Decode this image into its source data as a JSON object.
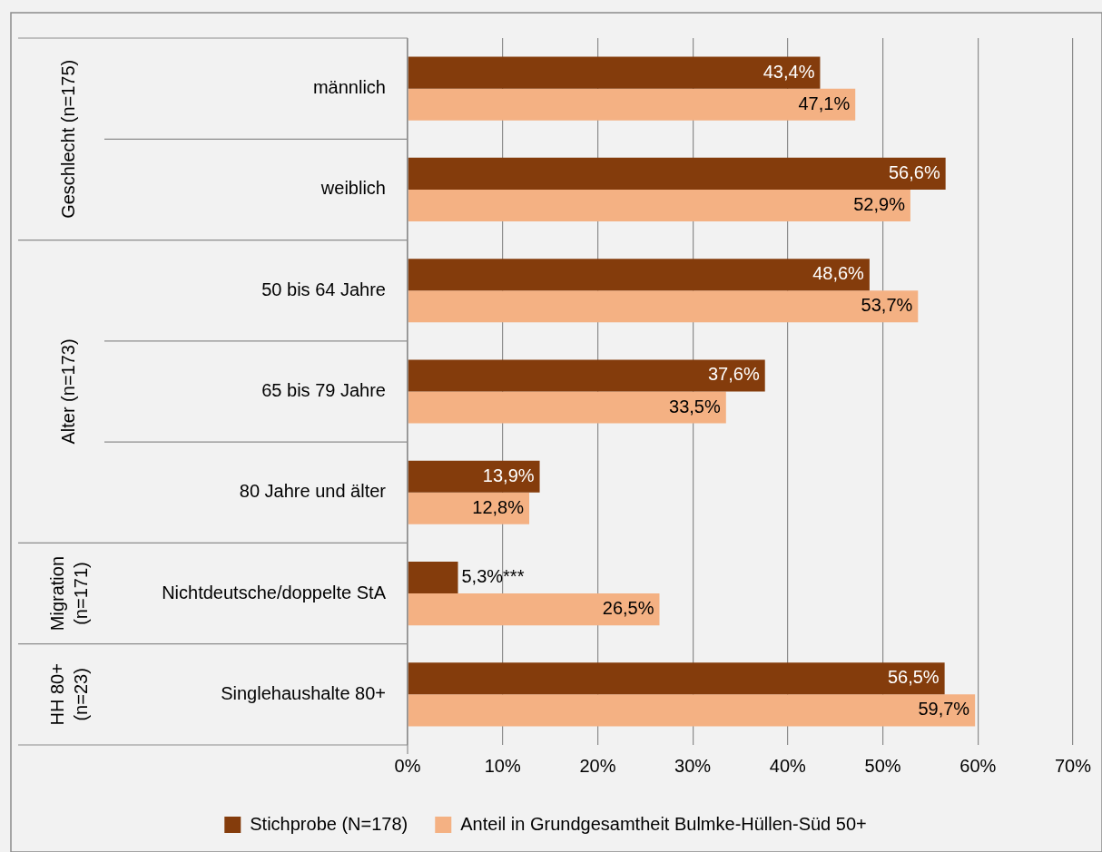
{
  "chart_data": {
    "type": "bar",
    "orientation": "horizontal",
    "categories": [
      "männlich",
      "weiblich",
      "50 bis 64 Jahre",
      "65 bis 79 Jahre",
      "80 Jahre und älter",
      "Nichtdeutsche/doppelte StA",
      "Singlehaushalte 80+"
    ],
    "series": [
      {
        "name": "Stichprobe (N=178)",
        "color": "#843c0c",
        "values": [
          43.4,
          56.6,
          48.6,
          37.6,
          13.9,
          5.3,
          56.5
        ],
        "value_labels": [
          "43,4%",
          "56,6%",
          "48,6%",
          "37,6%",
          "13,9%",
          "5,3%***",
          "56,5%"
        ]
      },
      {
        "name": "Anteil in Grundgesamtheit Bulmke-Hüllen-Süd 50+",
        "color": "#f4b183",
        "values": [
          47.1,
          52.9,
          53.7,
          33.5,
          12.8,
          26.5,
          59.7
        ],
        "value_labels": [
          "47,1%",
          "52,9%",
          "53,7%",
          "33,5%",
          "12,8%",
          "26,5%",
          "59,7%"
        ]
      }
    ],
    "xlim": [
      0,
      70
    ],
    "xticks": [
      {
        "value": 0,
        "label": "0%"
      },
      {
        "value": 10,
        "label": "10%"
      },
      {
        "value": 20,
        "label": "20%"
      },
      {
        "value": 30,
        "label": "30%"
      },
      {
        "value": 40,
        "label": "40%"
      },
      {
        "value": 50,
        "label": "50%"
      },
      {
        "value": 60,
        "label": "60%"
      },
      {
        "value": 70,
        "label": "70%"
      }
    ],
    "grid": "x",
    "legend": "bottom",
    "annotations": [
      "Geschlecht (n=175)",
      "Alter (n=173)",
      "Migration (n=171)",
      "HH 80+ (n=23)"
    ]
  }
}
